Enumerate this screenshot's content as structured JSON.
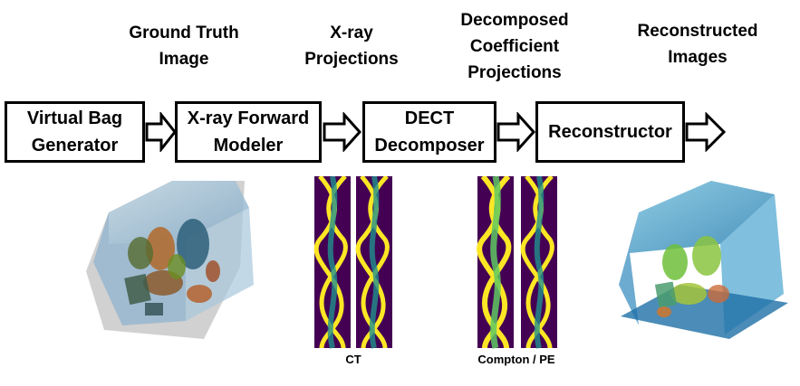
{
  "stage_labels": {
    "ground_truth": "Ground Truth\nImage",
    "xray_projections": "X-ray\nProjections",
    "decomposed": "Decomposed\nCoefficient\nProjections",
    "reconstructed": "Reconstructed\nImages"
  },
  "boxes": {
    "generator": "Virtual Bag\nGenerator",
    "forward_modeler": "X-ray Forward\nModeler",
    "decomposer": "DECT\nDecomposer",
    "reconstructor": "Reconstructor"
  },
  "captions": {
    "ct": "CT",
    "compton_pe": "Compton / PE"
  },
  "colors": {
    "sinogram_bg": "#440154",
    "sinogram_mid": "#21918c",
    "sinogram_hi": "#fde725",
    "bag_shell": "#9fc2dc",
    "recon_shell": "#4aa0c8"
  }
}
